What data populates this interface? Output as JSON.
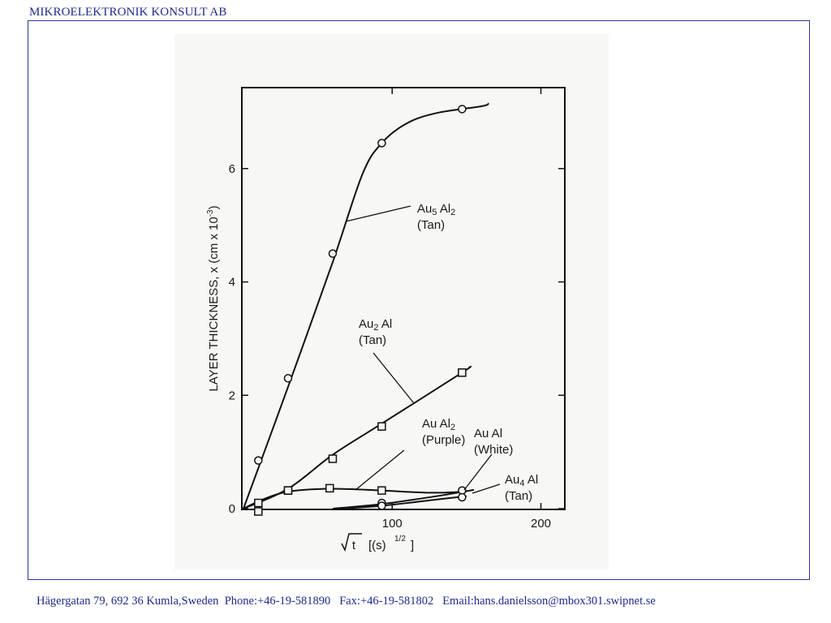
{
  "header": {
    "company": "MIKROELEKTRONIK KONSULT AB"
  },
  "footer": {
    "address": "Hägergatan 79, 692 36 Kumla,Sweden",
    "phone": "Phone:+46-19-581890",
    "fax": "Fax:+46-19-581802",
    "email": "Email:hans.danielsson@mbox301.swipnet.se"
  },
  "chart_data": {
    "type": "scatter",
    "title": "",
    "xlabel": "√t [(s)^1/2]",
    "ylabel": "LAYER THICKNESS, x (cm x 10^-3)",
    "xlim": [
      0,
      215
    ],
    "ylim": [
      0,
      7.4
    ],
    "xticks": [
      100,
      200
    ],
    "xtick_labels": [
      "100",
      "200"
    ],
    "yticks": [
      0,
      2,
      4,
      6
    ],
    "ytick_labels": [
      "0",
      "2",
      "4",
      "6"
    ],
    "grid": false,
    "series": [
      {
        "name": "Au5 Al2 (Tan)",
        "marker": "circle",
        "points": [
          [
            10,
            0.85
          ],
          [
            30,
            2.3
          ],
          [
            60,
            4.5
          ],
          [
            93,
            6.45
          ],
          [
            147,
            7.05
          ]
        ],
        "curve": [
          [
            0,
            0
          ],
          [
            30,
            2.15
          ],
          [
            60,
            4.35
          ],
          [
            80,
            5.9
          ],
          [
            93,
            6.45
          ],
          [
            110,
            6.8
          ],
          [
            130,
            6.98
          ],
          [
            160,
            7.1
          ],
          [
            165,
            7.15
          ]
        ],
        "label_lines": [
          "Au5 Al2",
          "(Tan)"
        ]
      },
      {
        "name": "Au2 Al (Tan)",
        "marker": "square",
        "points": [
          [
            10,
            -0.05
          ],
          [
            10,
            0.1
          ],
          [
            30,
            0.32
          ],
          [
            60,
            0.88
          ],
          [
            93,
            1.45
          ],
          [
            147,
            2.4
          ]
        ],
        "curve": [
          [
            0,
            0
          ],
          [
            30,
            0.35
          ],
          [
            60,
            0.95
          ],
          [
            93,
            1.5
          ],
          [
            147,
            2.4
          ],
          [
            152,
            2.5
          ]
        ],
        "label_lines": [
          "Au2 Al",
          "(Tan)"
        ]
      },
      {
        "name": "Au Al2 (Purple)",
        "marker": "square",
        "points": [
          [
            30,
            0.32
          ],
          [
            58,
            0.36
          ],
          [
            93,
            0.32
          ]
        ],
        "curve": [
          [
            0,
            0
          ],
          [
            12,
            0.15
          ],
          [
            30,
            0.3
          ],
          [
            58,
            0.35
          ],
          [
            93,
            0.32
          ],
          [
            125,
            0.28
          ],
          [
            150,
            0.3
          ]
        ],
        "label_lines": [
          "Au Al2",
          "(Purple)"
        ]
      },
      {
        "name": "Au Al (White)",
        "marker": "circle",
        "points": [
          [
            93,
            0.1
          ],
          [
            147,
            0.32
          ]
        ],
        "curve": [
          [
            60,
            0
          ],
          [
            93,
            0.08
          ],
          [
            130,
            0.22
          ],
          [
            155,
            0.33
          ]
        ],
        "label_lines": [
          "Au Al",
          "(White)"
        ]
      },
      {
        "name": "Au4 Al (Tan)",
        "marker": "circle",
        "points": [
          [
            93,
            0.05
          ],
          [
            147,
            0.2
          ]
        ],
        "curve": [
          [
            65,
            0
          ],
          [
            93,
            0.05
          ],
          [
            130,
            0.16
          ],
          [
            150,
            0.22
          ]
        ],
        "label_lines": [
          "Au4 Al",
          "(Tan)"
        ]
      }
    ]
  }
}
